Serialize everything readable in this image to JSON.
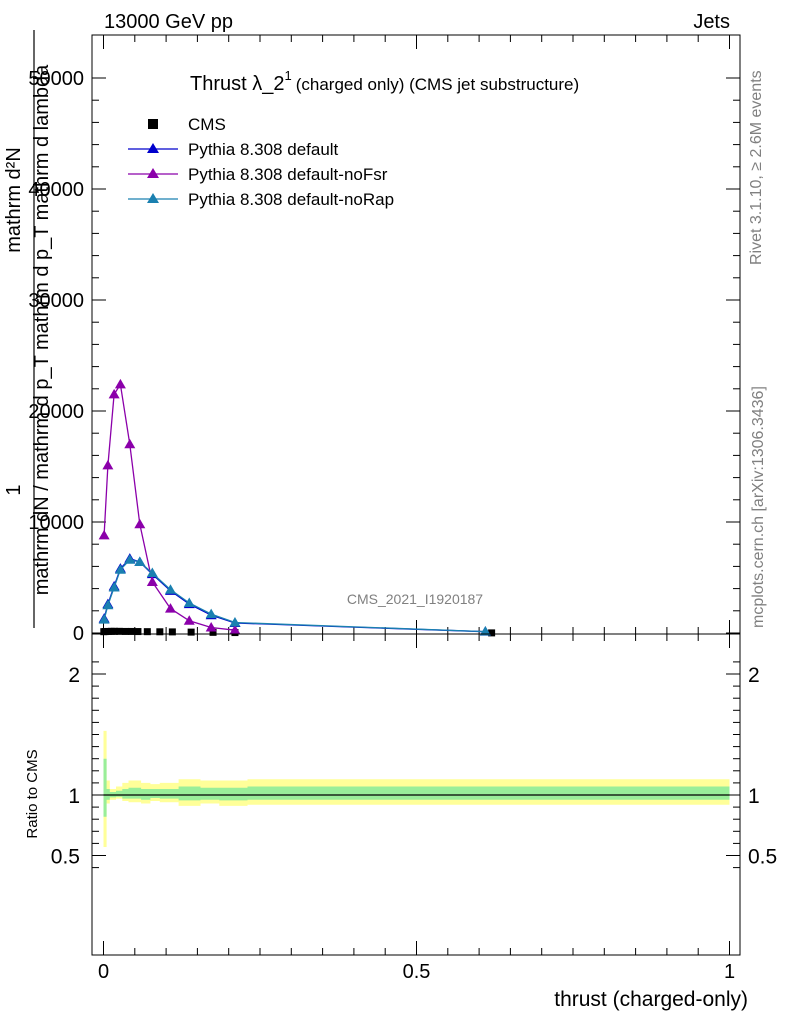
{
  "header": {
    "left": "13000 GeV pp",
    "right": "Jets"
  },
  "side": {
    "rivet": "Rivet 3.1.10, ≥ 2.6M events",
    "mcplots": "mcplots.cern.ch [arXiv:1306.3436]"
  },
  "chart_data": [
    {
      "type": "line",
      "title_main": "Thrust λ_2",
      "title_sup": "1",
      "title_rest": "(charged only) (CMS jet substructure)",
      "analysis_label": "CMS_2021_I1920187",
      "ylabel_top": "1",
      "ylabel_num": "mathrm d²N",
      "ylabel_den": "mathrm dN / mathrm d p_T mathrm d p_T mathrm d lambda",
      "xlim": [
        0,
        1
      ],
      "ylim": [
        0,
        50000
      ],
      "y_ticks": [
        0,
        10000,
        20000,
        30000,
        40000,
        50000
      ],
      "y_tick_labels": [
        "0",
        "10000",
        "20000",
        "30000",
        "40000",
        "50000"
      ],
      "legend_position": "top-left",
      "series": [
        {
          "name": "CMS",
          "marker": "square",
          "color": "#000000",
          "x": [
            0.0005,
            0.003,
            0.0075,
            0.0125,
            0.0175,
            0.025,
            0.035,
            0.045,
            0.055,
            0.07,
            0.09,
            0.11,
            0.14,
            0.175,
            0.21,
            0.62
          ],
          "y": [
            120,
            130,
            140,
            150,
            150,
            150,
            140,
            140,
            130,
            120,
            110,
            100,
            80,
            60,
            40,
            10
          ]
        },
        {
          "name": "Pythia 8.308 default",
          "marker": "triangle",
          "color": "#0000cc",
          "x": [
            0.001,
            0.007,
            0.017,
            0.027,
            0.042,
            0.058,
            0.078,
            0.107,
            0.137,
            0.172,
            0.21,
            0.61
          ],
          "y": [
            1300,
            2600,
            4200,
            5800,
            6700,
            6400,
            5300,
            3800,
            2600,
            1600,
            900,
            120
          ]
        },
        {
          "name": "Pythia 8.308 default-noFsr",
          "marker": "triangle",
          "color": "#8b00aa",
          "x": [
            0.001,
            0.007,
            0.017,
            0.027,
            0.042,
            0.058,
            0.078,
            0.107,
            0.137,
            0.172,
            0.21
          ],
          "y": [
            8800,
            15100,
            21500,
            22400,
            17000,
            9800,
            4600,
            2200,
            1100,
            500,
            250
          ]
        },
        {
          "name": "Pythia 8.308 default-noRap",
          "marker": "triangle",
          "color": "#1a80b0",
          "x": [
            0.001,
            0.007,
            0.017,
            0.027,
            0.042,
            0.058,
            0.078,
            0.107,
            0.137,
            0.172,
            0.21,
            0.61
          ],
          "y": [
            1200,
            2500,
            4100,
            5700,
            6600,
            6400,
            5400,
            3900,
            2700,
            1700,
            950,
            130
          ]
        }
      ]
    },
    {
      "type": "area",
      "ylabel": "Ratio to CMS",
      "xlabel": "thrust (charged-only)",
      "xlim": [
        0,
        1
      ],
      "ylim": [
        0.35,
        2.25
      ],
      "x_ticks": [
        0,
        0.5,
        1
      ],
      "x_tick_labels": [
        "0",
        "0.5",
        "1"
      ],
      "y_ticks": [
        0.5,
        1,
        2
      ],
      "y_tick_labels": [
        "0.5",
        "1",
        "2"
      ],
      "bands": {
        "edges": [
          0,
          0.005,
          0.01,
          0.02,
          0.03,
          0.04,
          0.05,
          0.06,
          0.075,
          0.09,
          0.12,
          0.155,
          0.185,
          0.23,
          1
        ],
        "yellow_lo": [
          0.57,
          0.93,
          0.96,
          0.97,
          0.95,
          0.94,
          0.94,
          0.93,
          0.95,
          0.94,
          0.91,
          0.93,
          0.91,
          0.92
        ],
        "yellow_hi": [
          1.53,
          1.12,
          1.05,
          1.07,
          1.1,
          1.12,
          1.12,
          1.1,
          1.09,
          1.1,
          1.13,
          1.12,
          1.12,
          1.13
        ],
        "green_lo": [
          0.82,
          0.96,
          0.98,
          0.985,
          0.97,
          0.97,
          0.97,
          0.96,
          0.975,
          0.97,
          0.955,
          0.96,
          0.955,
          0.96
        ],
        "green_hi": [
          1.3,
          1.05,
          1.025,
          1.035,
          1.05,
          1.06,
          1.06,
          1.05,
          1.05,
          1.05,
          1.07,
          1.06,
          1.06,
          1.07
        ]
      },
      "colors": {
        "yellow": "#ffff99",
        "green": "#99ee99"
      }
    }
  ]
}
